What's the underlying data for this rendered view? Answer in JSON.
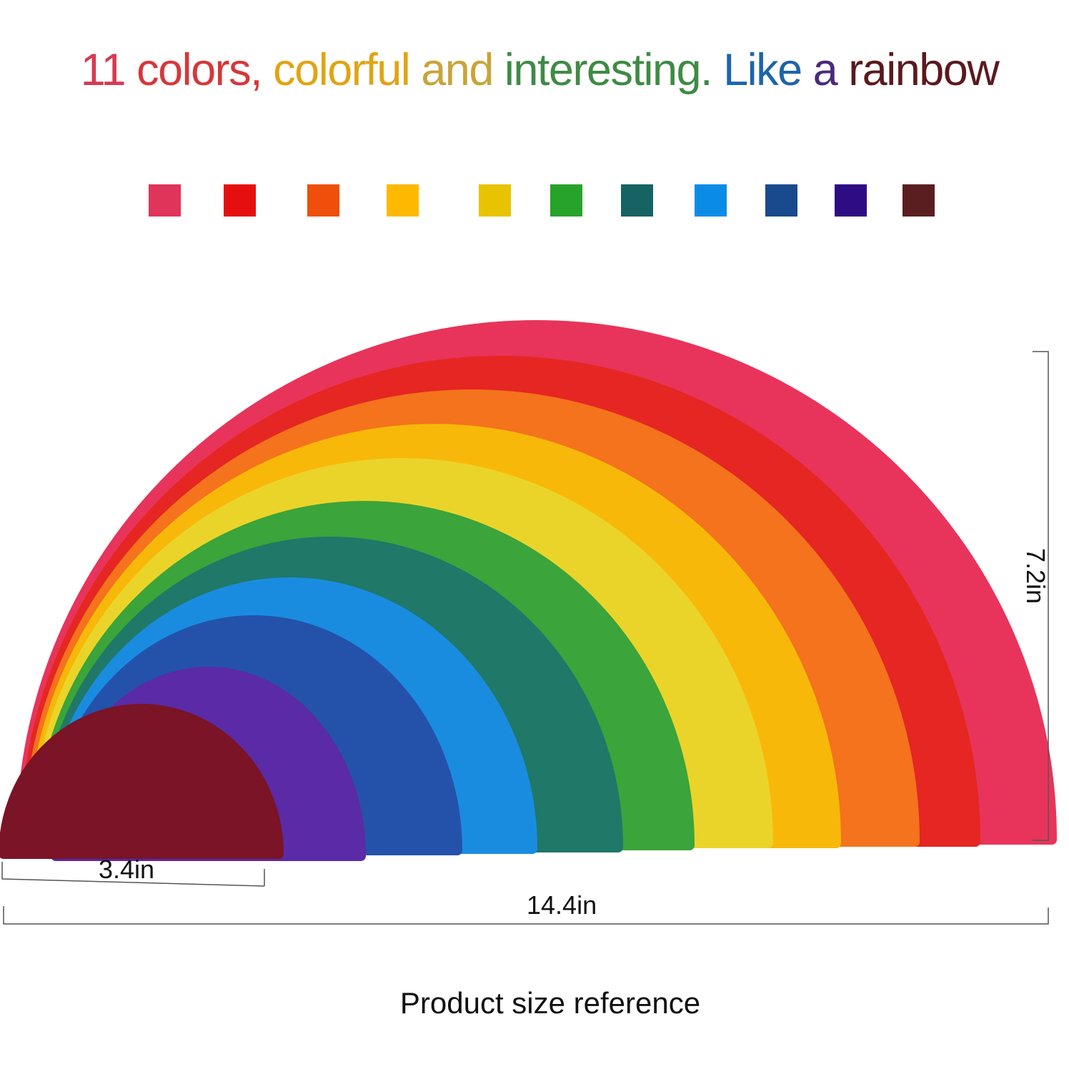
{
  "title": {
    "segments": [
      {
        "text": "11 ",
        "color": "#d63a50"
      },
      {
        "text": "colors, ",
        "color": "#d6373a"
      },
      {
        "text": "colorful ",
        "color": "#e0a414"
      },
      {
        "text": "and ",
        "color": "#c9a43a"
      },
      {
        "text": "interesting. ",
        "color": "#3f8a45"
      },
      {
        "text": "Like ",
        "color": "#1d64a8"
      },
      {
        "text": "a ",
        "color": "#4a2a7a"
      },
      {
        "text": "rainbow",
        "color": "#5a1a1e"
      }
    ]
  },
  "swatches": [
    "#e0345a",
    "#e50f0f",
    "#ef4f0a",
    "#fdb900",
    "#e8c300",
    "#28a32a",
    "#176363",
    "#0a8ce6",
    "#1a4a8e",
    "#2e0c84",
    "#5a1e20"
  ],
  "arches": [
    {
      "color": "#e8345a"
    },
    {
      "color": "#e52622"
    },
    {
      "color": "#f4731c"
    },
    {
      "color": "#f8b80a"
    },
    {
      "color": "#ebd42a"
    },
    {
      "color": "#3ba43a"
    },
    {
      "color": "#1f7868"
    },
    {
      "color": "#1a8ce0"
    },
    {
      "color": "#2452aa"
    },
    {
      "color": "#5b2aa6"
    },
    {
      "color": "#7a1426"
    }
  ],
  "dimensions": {
    "small_width": "3.4in",
    "total_width": "14.4in",
    "height": "7.2in"
  },
  "caption": "Product size reference"
}
